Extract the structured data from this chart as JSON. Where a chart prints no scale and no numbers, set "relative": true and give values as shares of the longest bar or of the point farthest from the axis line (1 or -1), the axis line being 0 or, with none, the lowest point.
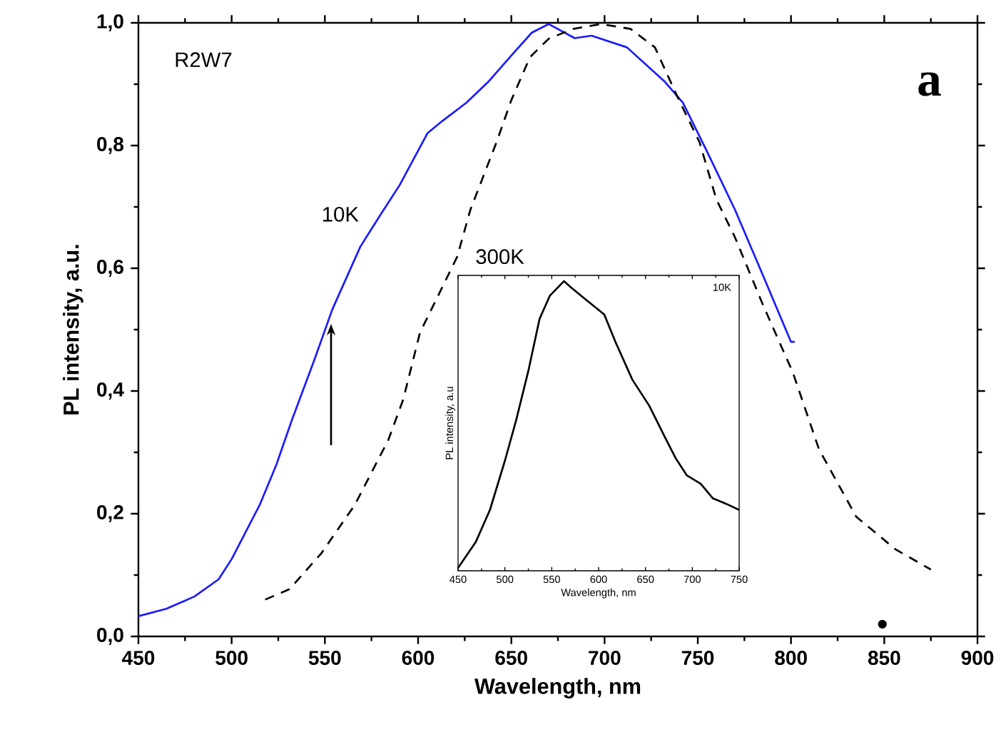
{
  "chart_data": [
    {
      "type": "line",
      "xlabel": "Wavelength, nm",
      "ylabel": "PL intensity, a.u.",
      "annotations": [
        "R2W7",
        "a"
      ],
      "xlim": [
        450,
        900
      ],
      "xticks": [
        450,
        500,
        550,
        600,
        650,
        700,
        750,
        800,
        850,
        900
      ],
      "ylim": [
        0,
        1.0
      ],
      "yticks": [
        {
          "value": 0,
          "label": "0,0"
        },
        {
          "value": 0.2,
          "label": "0,2"
        },
        {
          "value": 0.4,
          "label": "0,4"
        },
        {
          "value": 0.6,
          "label": "0,6"
        },
        {
          "value": 0.8,
          "label": "0,8"
        },
        {
          "value": 1.0,
          "label": "1,0"
        }
      ],
      "series": [
        {
          "name": "10K",
          "color": "#1a1aff",
          "line_style": "solid",
          "x": [
            450,
            465,
            480,
            493,
            500,
            515,
            524,
            532,
            545,
            554,
            569,
            580,
            590,
            605,
            613,
            626,
            638,
            651,
            661,
            670,
            684,
            693,
            712,
            732,
            742,
            755,
            770,
            785,
            800,
            802
          ],
          "values": [
            0.033,
            0.045,
            0.065,
            0.093,
            0.126,
            0.214,
            0.28,
            0.35,
            0.456,
            0.533,
            0.635,
            0.688,
            0.735,
            0.82,
            0.84,
            0.87,
            0.905,
            0.95,
            0.984,
            0.998,
            0.975,
            0.979,
            0.96,
            0.905,
            0.87,
            0.79,
            0.695,
            0.588,
            0.48,
            0.48
          ]
        },
        {
          "name": "300K",
          "color": "#000000",
          "line_style": "dashed",
          "x": [
            518,
            531,
            548,
            566,
            584,
            592,
            601,
            621,
            628,
            642,
            650,
            660,
            670,
            683,
            698,
            714,
            727,
            739,
            751,
            760,
            770,
            785,
            801,
            815,
            835,
            856,
            875
          ],
          "values": [
            0.06,
            0.077,
            0.135,
            0.214,
            0.32,
            0.386,
            0.495,
            0.619,
            0.695,
            0.805,
            0.874,
            0.944,
            0.974,
            0.99,
            0.998,
            0.99,
            0.96,
            0.88,
            0.805,
            0.712,
            0.65,
            0.54,
            0.43,
            0.305,
            0.195,
            0.142,
            0.109
          ]
        },
        {
          "type": "scatter",
          "marker": "circle",
          "color": "#000000",
          "x": [
            849
          ],
          "values": [
            0.02
          ]
        }
      ]
    },
    {
      "type": "line",
      "relative": true,
      "xlabel": "Wavelength, nm",
      "ylabel": "PL intensity, a.u",
      "annotations": [
        "10K"
      ],
      "xlim": [
        450,
        750
      ],
      "xticks": [
        450,
        500,
        550,
        600,
        650,
        700,
        750
      ],
      "series": [
        {
          "color": "#000000",
          "line_style": "solid",
          "x": [
            450,
            469,
            484,
            500,
            512,
            525,
            537,
            548,
            563,
            570,
            585,
            606,
            618,
            636,
            654,
            671,
            682,
            694,
            709,
            722,
            737,
            750
          ],
          "values": [
            0.01,
            0.1,
            0.21,
            0.38,
            0.52,
            0.69,
            0.87,
            0.95,
            1.0,
            0.98,
            0.94,
            0.885,
            0.79,
            0.66,
            0.57,
            0.46,
            0.39,
            0.33,
            0.3,
            0.25,
            0.23,
            0.21
          ]
        }
      ]
    }
  ]
}
